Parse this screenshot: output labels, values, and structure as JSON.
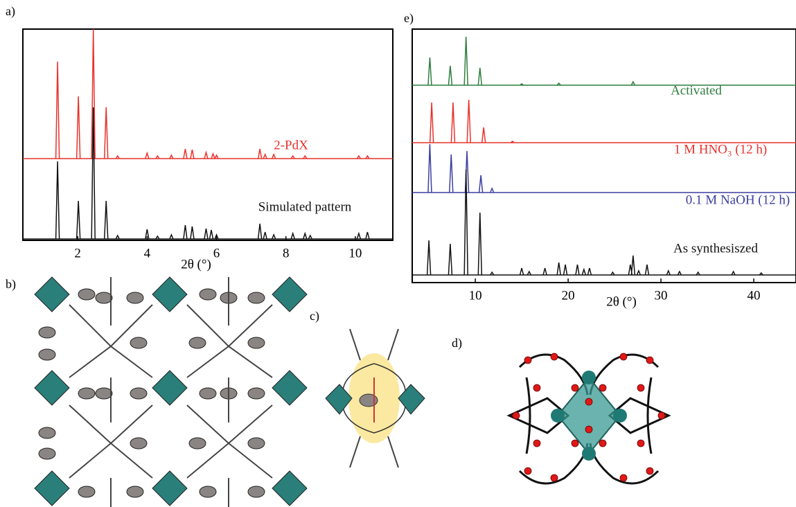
{
  "panels": {
    "a": "a)",
    "b": "b)",
    "c": "c)",
    "d": "d)",
    "e": "e)"
  },
  "chart_data": [
    {
      "type": "line",
      "xlabel": "2θ (°)",
      "xlim": [
        0.42,
        11.08
      ],
      "xticks": [
        2,
        4,
        6,
        8,
        10
      ],
      "series": [
        {
          "name": "2-PdX",
          "color": "#e8322b",
          "x": [
            1.42,
            2.02,
            2.45,
            2.82,
            3.15,
            4.0,
            4.3,
            4.7,
            5.1,
            5.3,
            5.7,
            5.9,
            6.0,
            7.25,
            7.4,
            7.65,
            8.2,
            8.55,
            10.1,
            10.35
          ],
          "values": [
            140,
            90,
            187,
            74,
            4,
            8,
            4,
            5,
            14,
            13,
            9,
            7,
            5,
            14,
            6,
            6,
            4,
            4,
            4,
            4
          ]
        },
        {
          "name": "Simulated pattern",
          "color": "#111111",
          "x": [
            1.42,
            2.02,
            2.45,
            2.82,
            3.15,
            4.0,
            4.3,
            4.7,
            5.1,
            5.3,
            5.7,
            5.85,
            6.0,
            7.25,
            7.4,
            7.65,
            8.2,
            8.55,
            8.7,
            10.1,
            10.35
          ],
          "values": [
            112,
            55,
            190,
            55,
            5,
            14,
            4,
            6,
            20,
            18,
            15,
            13,
            6,
            22,
            10,
            6,
            8,
            8,
            5,
            8,
            10
          ]
        }
      ]
    },
    {
      "type": "line",
      "xlabel": "2θ (°)",
      "xlim": [
        3.2,
        44.55
      ],
      "xticks": [
        10,
        20,
        30,
        40
      ],
      "series": [
        {
          "name": "Activated",
          "color": "#2e7d3e",
          "x": [
            5.1,
            7.3,
            9.0,
            10.5,
            15.0,
            19.0,
            27.0
          ],
          "values": [
            40,
            28,
            70,
            25,
            2,
            3,
            5
          ]
        },
        {
          "name": "1 M HNO₃ (12 h)",
          "color": "#e8322b",
          "x": [
            5.3,
            7.6,
            9.3,
            10.9,
            14.0
          ],
          "values": [
            58,
            58,
            62,
            22,
            2
          ]
        },
        {
          "name": "0.1 M NaOH (12 h)",
          "color": "#3b3fa0",
          "x": [
            5.1,
            7.4,
            9.1,
            10.6,
            11.8
          ],
          "values": [
            70,
            55,
            60,
            25,
            6
          ]
        },
        {
          "name": "As synthesiszed",
          "color": "#111111",
          "x": [
            5.0,
            7.3,
            9.0,
            10.5,
            11.8,
            15.0,
            15.8,
            17.5,
            19.0,
            19.7,
            21.0,
            21.7,
            22.3,
            24.8,
            26.7,
            27.0,
            27.6,
            28.5,
            30.8,
            32.0,
            34.0,
            37.8,
            40.8
          ],
          "values": [
            50,
            45,
            152,
            90,
            4,
            10,
            5,
            10,
            18,
            15,
            15,
            8,
            10,
            4,
            15,
            28,
            6,
            15,
            6,
            5,
            4,
            5,
            3
          ]
        }
      ]
    }
  ]
}
